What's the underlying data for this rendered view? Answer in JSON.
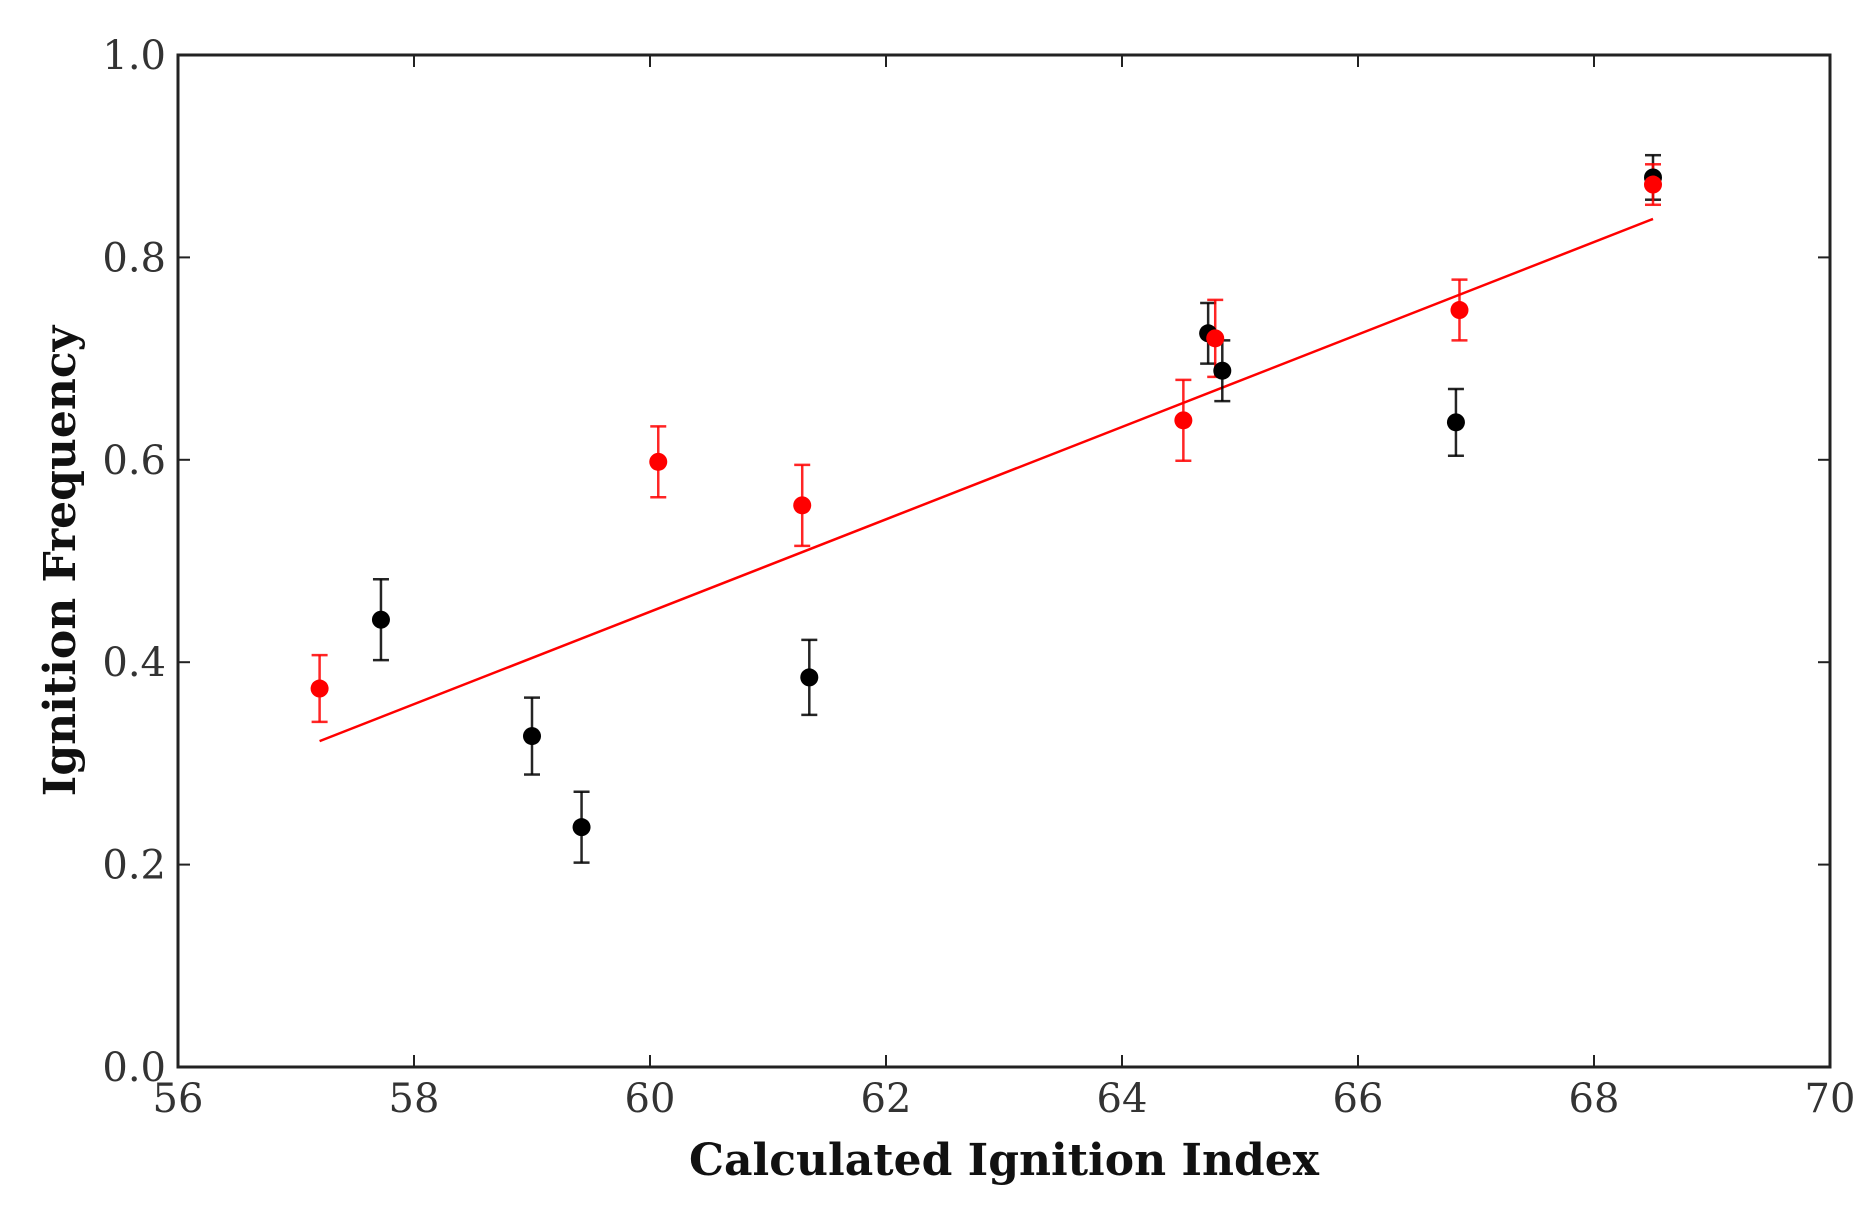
{
  "chart_data": {
    "type": "scatter",
    "title": "",
    "xlabel": "Calculated Ignition Index",
    "ylabel": "Ignition Frequency",
    "xlim": [
      56,
      70
    ],
    "ylim": [
      0.0,
      1.0
    ],
    "xticks": [
      "56",
      "58",
      "60",
      "62",
      "64",
      "66",
      "68",
      "70"
    ],
    "yticks": [
      "0.0",
      "0.2",
      "0.4",
      "0.6",
      "0.8",
      "1.0"
    ],
    "grid": false,
    "series": [
      {
        "name": "black",
        "color": "#000000",
        "points": [
          {
            "x": 57.72,
            "y": 0.442,
            "err": 0.04
          },
          {
            "x": 59.0,
            "y": 0.327,
            "err": 0.038
          },
          {
            "x": 59.42,
            "y": 0.237,
            "err": 0.035
          },
          {
            "x": 61.35,
            "y": 0.385,
            "err": 0.037
          },
          {
            "x": 64.73,
            "y": 0.725,
            "err": 0.03
          },
          {
            "x": 64.85,
            "y": 0.688,
            "err": 0.03
          },
          {
            "x": 66.83,
            "y": 0.637,
            "err": 0.033
          },
          {
            "x": 68.5,
            "y": 0.879,
            "err": 0.022
          }
        ]
      },
      {
        "name": "red",
        "color": "#ff0000",
        "points": [
          {
            "x": 57.2,
            "y": 0.374,
            "err": 0.033
          },
          {
            "x": 60.07,
            "y": 0.598,
            "err": 0.035
          },
          {
            "x": 61.29,
            "y": 0.555,
            "err": 0.04
          },
          {
            "x": 64.52,
            "y": 0.639,
            "err": 0.04
          },
          {
            "x": 64.79,
            "y": 0.72,
            "err": 0.038
          },
          {
            "x": 66.86,
            "y": 0.748,
            "err": 0.03
          },
          {
            "x": 68.5,
            "y": 0.872,
            "err": 0.02
          }
        ]
      }
    ],
    "fit_line": {
      "color": "#ff0000",
      "x": [
        57.2,
        68.5
      ],
      "y": [
        0.322,
        0.838
      ]
    }
  }
}
